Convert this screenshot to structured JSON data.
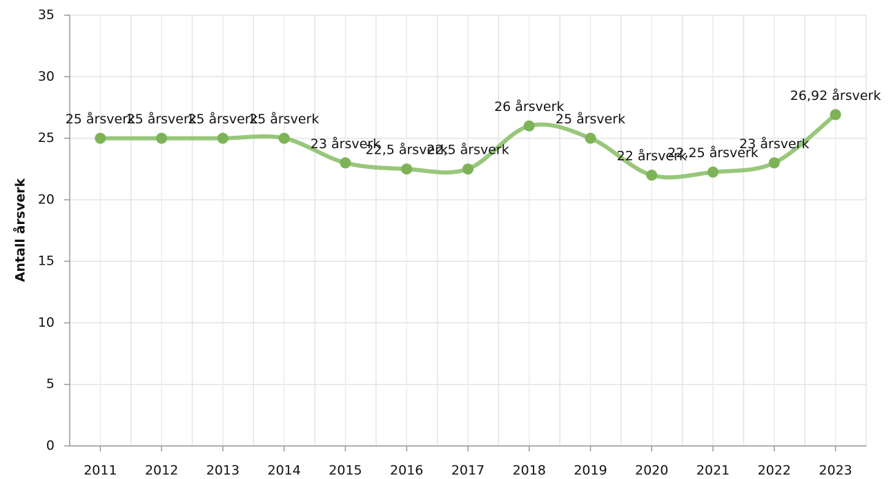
{
  "chart_data": {
    "type": "line",
    "y_label": "Antall årsverk",
    "categories": [
      "2011",
      "2012",
      "2013",
      "2014",
      "2015",
      "2016",
      "2017",
      "2018",
      "2019",
      "2020",
      "2021",
      "2022",
      "2023"
    ],
    "series": [
      {
        "name": "Antall årsverk",
        "color": "#8dc16b",
        "values": [
          25,
          25,
          25,
          25,
          23,
          22.5,
          22.5,
          26,
          25,
          22,
          22.25,
          23,
          26.92
        ],
        "value_labels": [
          "25 årsverk",
          "25 årsverk",
          "25 årsverk",
          "25 årsverk",
          "23 årsverk",
          "22,5 årsverk",
          "22,5 årsverk",
          "26 årsverk",
          "25 årsverk",
          "22 årsverk",
          "22,25 årsverk",
          "23 årsverk",
          "26,92 årsverk"
        ]
      }
    ],
    "ylim": [
      0,
      35
    ],
    "yticks": [
      0,
      5,
      10,
      15,
      20,
      25,
      30,
      35
    ],
    "grid": true
  }
}
